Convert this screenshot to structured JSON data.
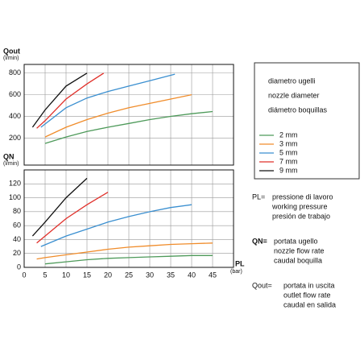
{
  "chart_data": [
    {
      "type": "line",
      "ylabel": "Qout",
      "yunit": "(l/min)",
      "ylim": [
        -50,
        880
      ],
      "yticks": [
        200,
        400,
        600,
        800
      ],
      "grid": true,
      "series": [
        {
          "name": "2 mm",
          "color": "#4e9a5a",
          "x": [
            5,
            10,
            15,
            20,
            25,
            30,
            35,
            40,
            45
          ],
          "values": [
            150,
            210,
            260,
            300,
            335,
            370,
            400,
            425,
            445
          ]
        },
        {
          "name": "3 mm",
          "color": "#f08c2a",
          "x": [
            5,
            10,
            15,
            20,
            25,
            30,
            35,
            40
          ],
          "values": [
            210,
            300,
            370,
            430,
            480,
            520,
            560,
            600
          ]
        },
        {
          "name": "5 mm",
          "color": "#3a8fd0",
          "x": [
            4,
            10,
            15,
            20,
            25,
            30,
            36
          ],
          "values": [
            300,
            480,
            570,
            630,
            680,
            730,
            790
          ]
        },
        {
          "name": "7 mm",
          "color": "#e0302a",
          "x": [
            3,
            5,
            10,
            15,
            19
          ],
          "values": [
            290,
            360,
            560,
            700,
            800
          ]
        },
        {
          "name": "9 mm",
          "color": "#111111",
          "x": [
            2,
            5,
            10,
            15
          ],
          "values": [
            300,
            460,
            680,
            800
          ]
        }
      ]
    },
    {
      "type": "line",
      "ylabel": "QN",
      "yunit": "(l/min)",
      "xlabel": "PL",
      "xunit": "(bar)",
      "xlim": [
        0,
        50
      ],
      "xticks": [
        0,
        5,
        10,
        15,
        20,
        25,
        30,
        35,
        40,
        45
      ],
      "ylim": [
        0,
        140
      ],
      "yticks": [
        0,
        20,
        40,
        60,
        80,
        100,
        120
      ],
      "grid": true,
      "series": [
        {
          "color": "#4e9a5a",
          "x": [
            5,
            10,
            15,
            20,
            25,
            30,
            35,
            40,
            45
          ],
          "values": [
            5,
            8,
            11,
            13,
            14,
            15,
            16,
            17,
            17
          ]
        },
        {
          "color": "#f08c2a",
          "x": [
            3,
            5,
            10,
            15,
            20,
            25,
            30,
            35,
            40,
            45
          ],
          "values": [
            12,
            14,
            18,
            22,
            26,
            29,
            31,
            33,
            34,
            35
          ]
        },
        {
          "color": "#3a8fd0",
          "x": [
            4,
            10,
            15,
            20,
            25,
            30,
            35,
            40
          ],
          "values": [
            30,
            45,
            55,
            65,
            73,
            80,
            86,
            90
          ]
        },
        {
          "color": "#e0302a",
          "x": [
            3,
            5,
            10,
            15,
            20
          ],
          "values": [
            35,
            45,
            70,
            90,
            108
          ]
        },
        {
          "color": "#111111",
          "x": [
            2,
            5,
            10,
            15
          ],
          "values": [
            45,
            65,
            100,
            128
          ]
        }
      ]
    }
  ],
  "legend_title": [
    "diametro ugelli",
    "nozzle diameter",
    "diámetro boquillas"
  ],
  "notes": [
    {
      "key": "PL=",
      "lines": [
        "pressione di lavoro",
        "working pressure",
        "presión de trabajo"
      ]
    },
    {
      "key": "QN=",
      "lines": [
        "portata ugello",
        "nozzle flow rate",
        "caudal boquilla"
      ]
    },
    {
      "key": "Qout=",
      "lines": [
        "portata in uscita",
        "outlet flow rate",
        "caudal en salida"
      ]
    }
  ]
}
